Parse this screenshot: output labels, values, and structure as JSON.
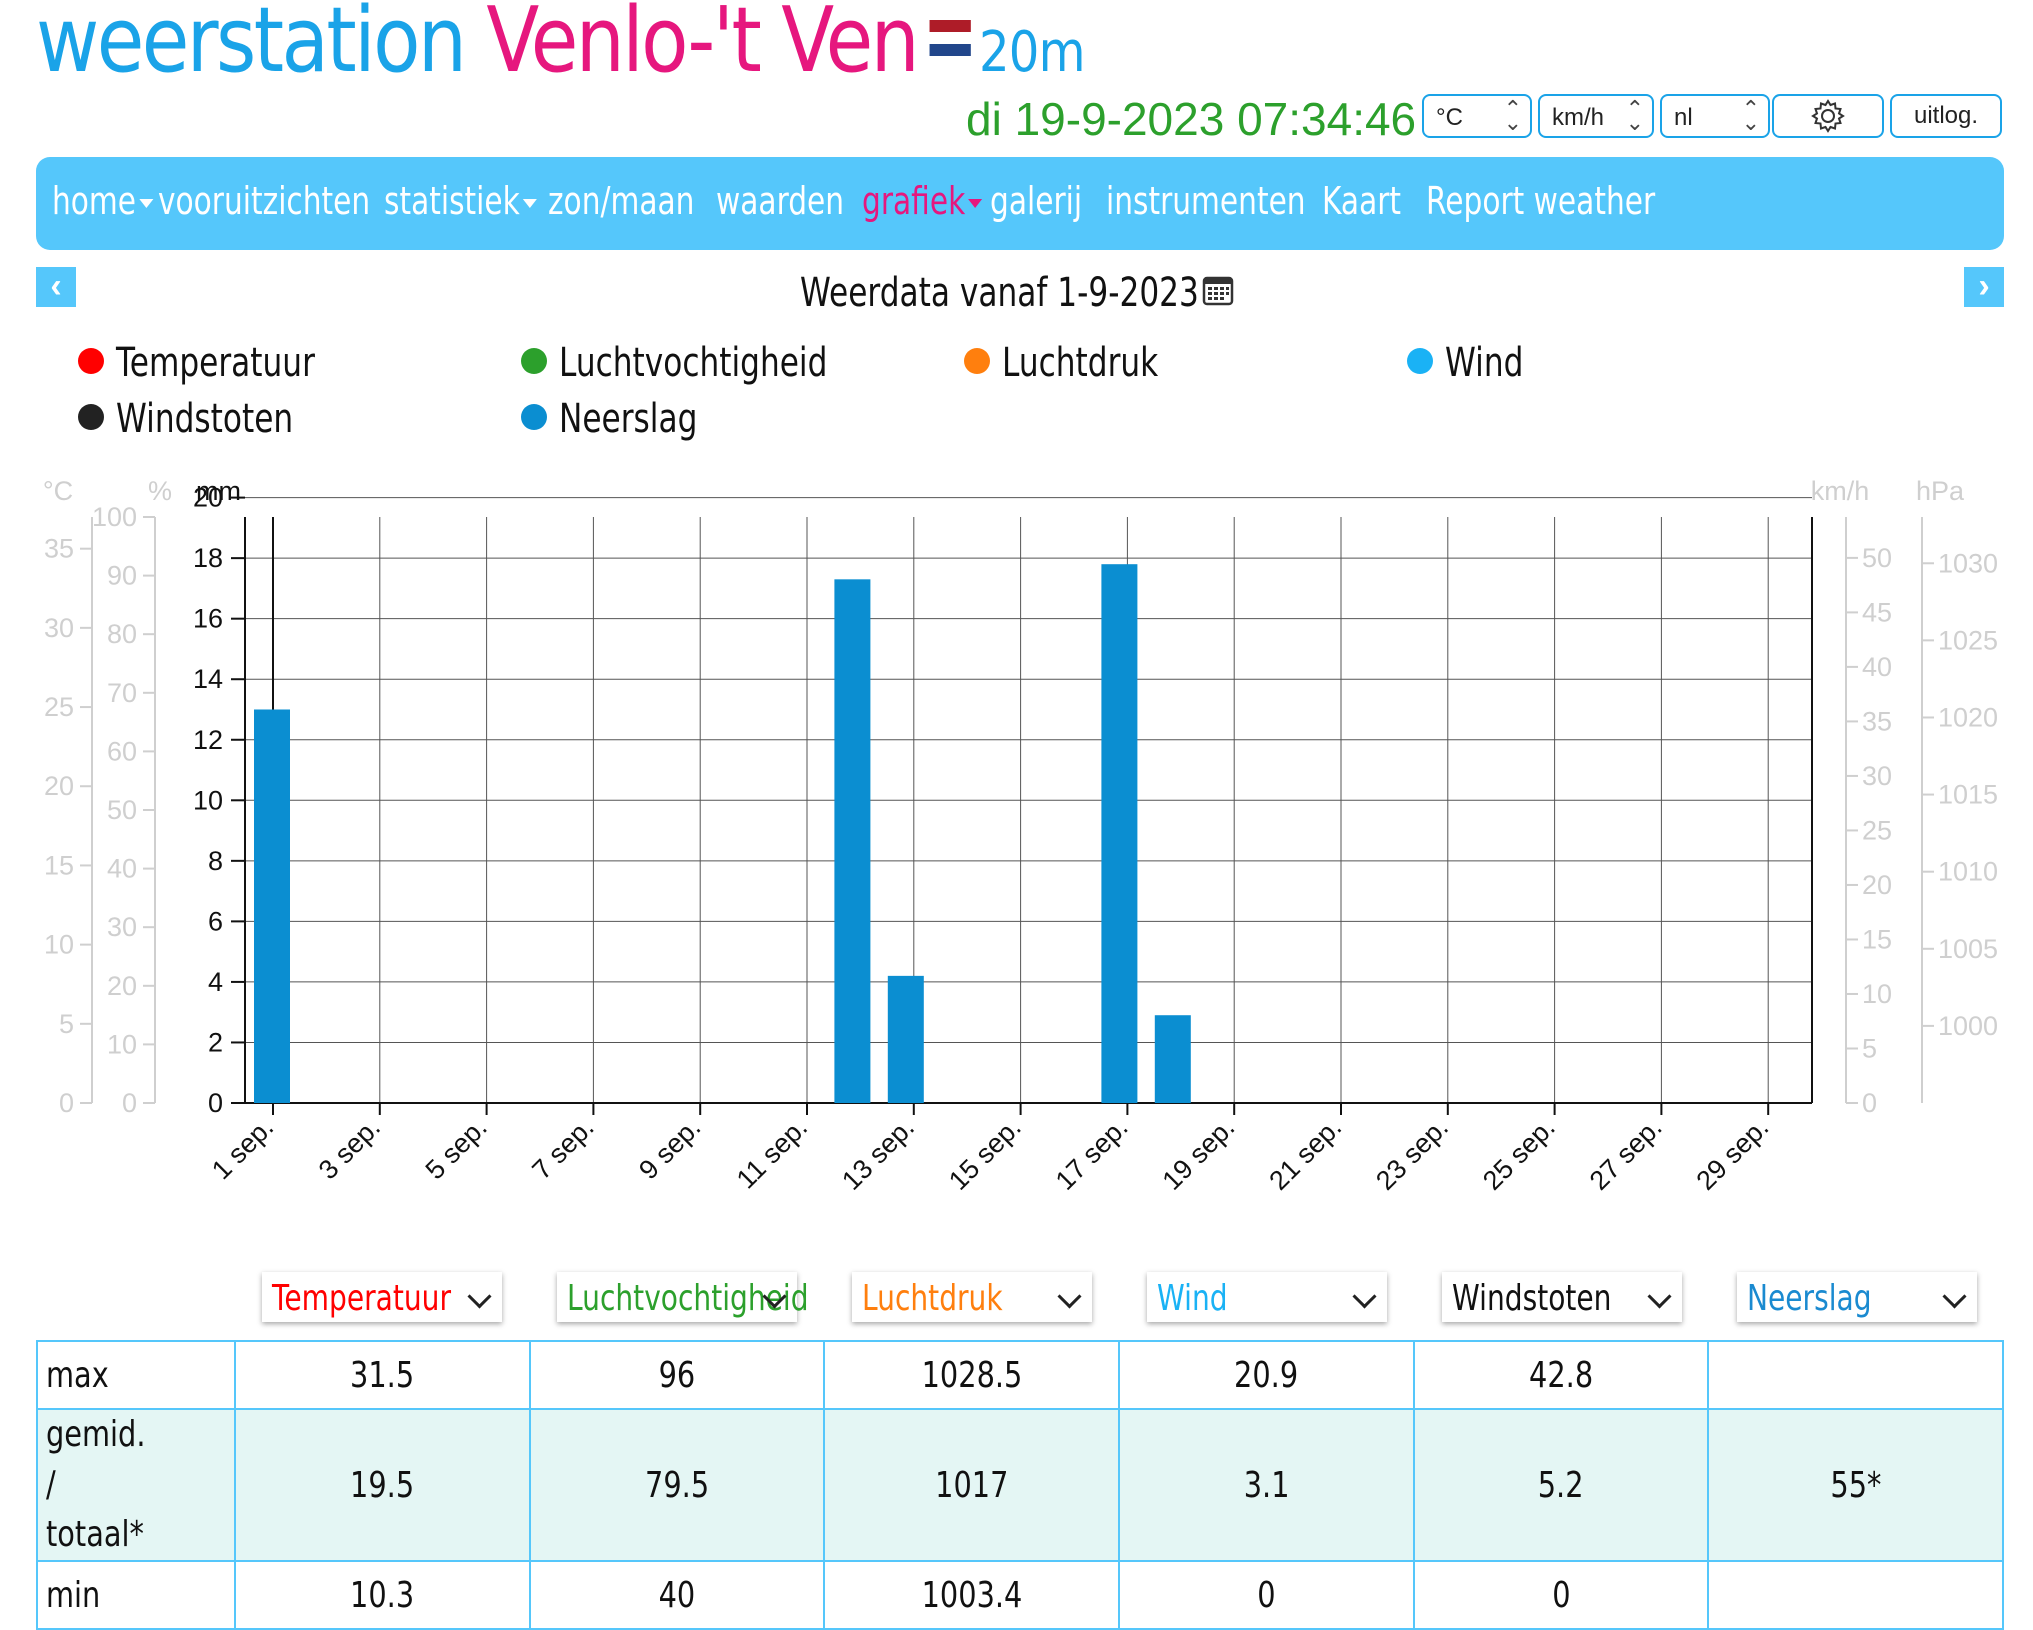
{
  "header": {
    "title_part1": "weerstation",
    "title_part2": "Venlo-'t Ven",
    "altitude": "20m",
    "datetime": "di 19-9-2023 07:34:46",
    "flag_colors": [
      "#ae1c28",
      "#ffffff",
      "#21468b"
    ],
    "controls": {
      "temp_unit": "°C",
      "wind_unit": "km/h",
      "language": "nl",
      "logout_label": "uitlog."
    }
  },
  "nav": {
    "items": [
      {
        "label": "home",
        "dropdown": true
      },
      {
        "label": "vooruitzichten",
        "dropdown": false
      },
      {
        "label": "statistiek",
        "dropdown": true
      },
      {
        "label": "zon/maan",
        "dropdown": false
      },
      {
        "label": "waarden",
        "dropdown": false
      },
      {
        "label": "grafiek",
        "dropdown": true,
        "active": true
      },
      {
        "label": "galerij",
        "dropdown": false
      },
      {
        "label": "instrumenten",
        "dropdown": false
      },
      {
        "label": "Kaart",
        "dropdown": false
      },
      {
        "label": "Report weather",
        "dropdown": false
      }
    ]
  },
  "chart_header": {
    "title": "Weerdata vanaf 1-9-2023"
  },
  "legend": [
    {
      "label": "Temperatuur",
      "color": "#ff0000"
    },
    {
      "label": "Luchtvochtigheid",
      "color": "#2ca02c"
    },
    {
      "label": "Luchtdruk",
      "color": "#ff7f0e"
    },
    {
      "label": "Wind",
      "color": "#1ab2f5"
    },
    {
      "label": "Windstoten",
      "color": "#222222"
    },
    {
      "label": "Neerslag",
      "color": "#0b8ed1"
    }
  ],
  "chart_data": {
    "type": "bar",
    "ylabel": "mm",
    "ylim": [
      0,
      21.5
    ],
    "y_ticks": [
      0,
      2,
      4,
      6,
      8,
      10,
      12,
      14,
      16,
      18,
      20
    ],
    "x_tick_labels": [
      "1 sep.",
      "3 sep.",
      "5 sep.",
      "7 sep.",
      "9 sep.",
      "11 sep.",
      "13 sep.",
      "15 sep.",
      "17 sep.",
      "19 sep.",
      "21 sep.",
      "23 sep.",
      "25 sep.",
      "27 sep.",
      "29 sep."
    ],
    "series": [
      {
        "name": "Neerslag",
        "color": "#0b8ed1",
        "x": [
          "1-9-2023",
          "12-9-2023",
          "13-9-2023",
          "17-9-2023",
          "18-9-2023"
        ],
        "values": [
          13.0,
          17.3,
          4.2,
          17.8,
          2.9
        ]
      }
    ],
    "extra_axes": [
      {
        "unit": "°C",
        "ticks": [
          0,
          5,
          10,
          15,
          20,
          25,
          30,
          35
        ],
        "max": 37
      },
      {
        "unit": "%",
        "ticks": [
          0,
          10,
          20,
          30,
          40,
          50,
          60,
          70,
          80,
          90,
          100
        ],
        "max": 100
      },
      {
        "unit": "km/h",
        "ticks": [
          0,
          5,
          10,
          15,
          20,
          25,
          30,
          35,
          40,
          45,
          50
        ],
        "max": 53.75
      },
      {
        "unit": "hPa",
        "ticks": [
          1000,
          1005,
          1010,
          1015,
          1020,
          1025,
          1030
        ],
        "min": 995,
        "max": 1033
      }
    ],
    "grid": true
  },
  "stats": {
    "columns": [
      {
        "label": "Temperatuur",
        "color": "#ff0000"
      },
      {
        "label": "Luchtvochtigheid",
        "color": "#2ca02c"
      },
      {
        "label": "Luchtdruk",
        "color": "#ff7f0e"
      },
      {
        "label": "Wind",
        "color": "#1ab2f5"
      },
      {
        "label": "Windstoten",
        "color": "#111111"
      },
      {
        "label": "Neerslag",
        "color": "#1a8ad0"
      }
    ],
    "rows": [
      {
        "label": "max",
        "values": [
          "31.5",
          "96",
          "1028.5",
          "20.9",
          "42.8",
          ""
        ]
      },
      {
        "label": "gemid. / totaal*",
        "values": [
          "19.5",
          "79.5",
          "1017",
          "3.1",
          "5.2",
          "55*"
        ]
      },
      {
        "label": "min",
        "values": [
          "10.3",
          "40",
          "1003.4",
          "0",
          "0",
          ""
        ]
      }
    ]
  }
}
